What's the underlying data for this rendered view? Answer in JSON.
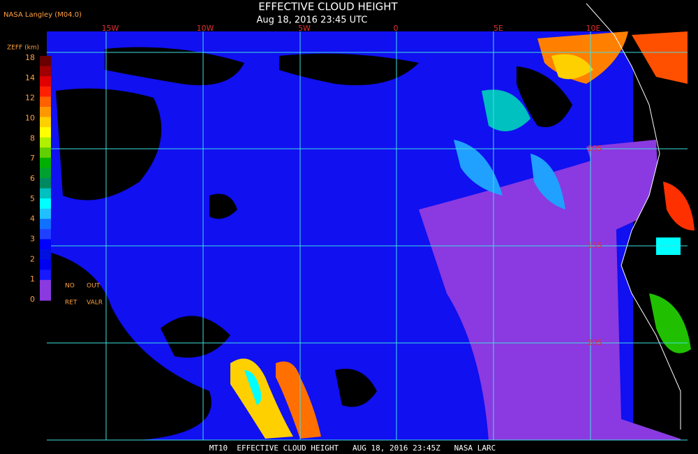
{
  "header": {
    "source": "NASA Langley (M04.0)",
    "title": "EFFECTIVE CLOUD HEIGHT",
    "subtitle": "Aug 18, 2016 23:45 UTC"
  },
  "map": {
    "longitude_labels": [
      "15W",
      "10W",
      "5W",
      "0",
      "5E",
      "10E"
    ],
    "latitude_labels": [
      "10S",
      "15S",
      "20S"
    ]
  },
  "legend": {
    "title": "ZEFF (km)",
    "labels": [
      "18",
      "14",
      "12",
      "10",
      "8",
      "7",
      "6",
      "5",
      "4",
      "3",
      "2",
      "1",
      "0"
    ],
    "no_retrieval": [
      "NO",
      "RET"
    ],
    "out_of_range": [
      "OUT",
      "VALR"
    ]
  },
  "footer": "MT10  EFFECTIVE CLOUD HEIGHT   AUG 18, 2016 23:45Z   NASA LARC"
}
